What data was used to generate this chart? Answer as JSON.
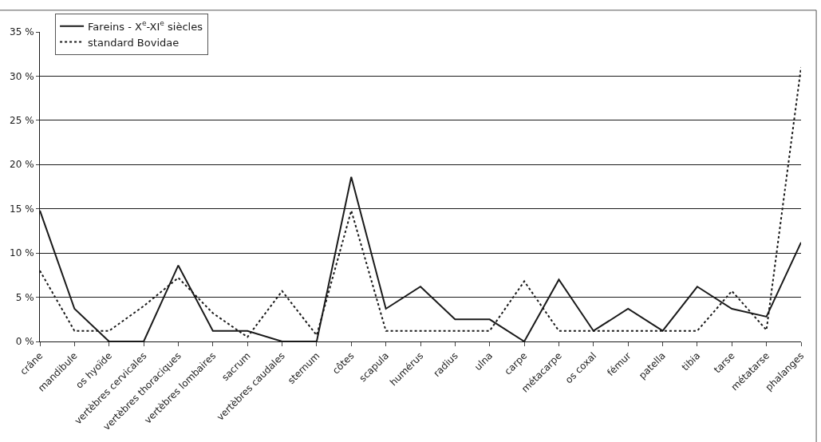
{
  "chart_data": {
    "type": "line",
    "categories": [
      "crâne",
      "mandibule",
      "os hyoïde",
      "vertèbres cervicales",
      "vertèbres thoraciques",
      "vertèbres lombaires",
      "sacrum",
      "vertèbres caudales",
      "sternum",
      "côtes",
      "scapula",
      "humérus",
      "radius",
      "ulna",
      "carpe",
      "métacarpe",
      "os coxal",
      "fémur",
      "patella",
      "tibia",
      "tarse",
      "métatarse",
      "phalanges"
    ],
    "series": [
      {
        "name": "Fareins - X$^{e}$-XI$^{e}$ siècles",
        "color": "#1a1a1a",
        "line_style": "solid",
        "values": [
          14.8,
          3.7,
          0,
          0,
          8.6,
          1.2,
          1.2,
          0,
          0,
          18.6,
          3.7,
          6.2,
          2.5,
          2.5,
          0,
          7.0,
          1.2,
          3.7,
          1.2,
          6.2,
          3.7,
          2.8,
          11.2
        ]
      },
      {
        "name": "standard Bovidae",
        "color": "#1a1a1a",
        "line_style": "dotted",
        "values": [
          8.0,
          1.2,
          1.2,
          4.0,
          7.2,
          3.2,
          0.5,
          5.7,
          0.7,
          14.8,
          1.2,
          1.2,
          1.2,
          1.2,
          6.8,
          1.2,
          1.2,
          1.2,
          1.2,
          1.2,
          5.7,
          1.3,
          31
        ]
      }
    ],
    "ylim": [
      0,
      35
    ],
    "yticks": [
      {
        "value": 0,
        "label": "0 %"
      },
      {
        "value": 5,
        "label": "5 %"
      },
      {
        "value": 10,
        "label": "10 %"
      },
      {
        "value": 15,
        "label": "15 %"
      },
      {
        "value": 20,
        "label": "20 %"
      },
      {
        "value": 25,
        "label": "25 %"
      },
      {
        "value": 30,
        "label": "30 %"
      },
      {
        "value": 35,
        "label": "35 %"
      }
    ],
    "grid": "y",
    "legend": "top left",
    "marker": "none"
  }
}
